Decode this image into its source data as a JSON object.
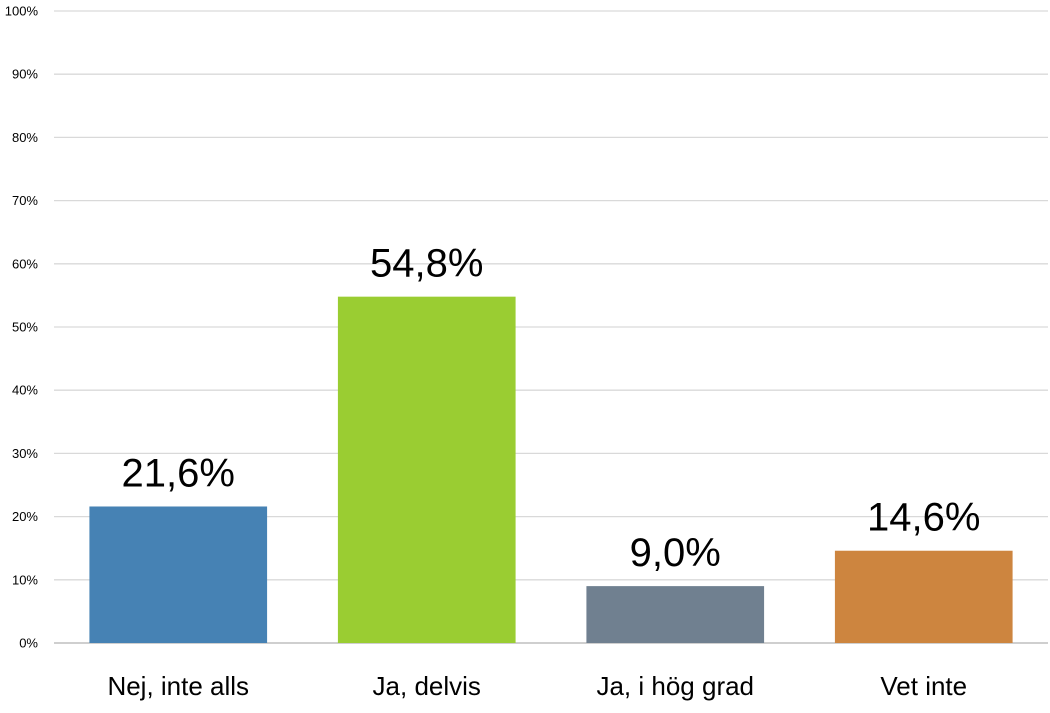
{
  "chart_data": {
    "type": "bar",
    "categories": [
      "Nej, inte alls",
      "Ja, delvis",
      "Ja, i hög grad",
      "Vet inte"
    ],
    "values": [
      21.6,
      54.8,
      9.0,
      14.6
    ],
    "data_labels": [
      "21,6%",
      "54,8%",
      "9,0%",
      "14,6%"
    ],
    "colors": [
      "#4682B4",
      "#9ACD32",
      "#708090",
      "#CD853F"
    ],
    "ylim": [
      0,
      100
    ],
    "yticks": [
      0,
      10,
      20,
      30,
      40,
      50,
      60,
      70,
      80,
      90,
      100
    ],
    "ytick_labels": [
      "0%",
      "10%",
      "20%",
      "30%",
      "40%",
      "50%",
      "60%",
      "70%",
      "80%",
      "90%",
      "100%"
    ],
    "grid": true,
    "legend": "none",
    "title": "",
    "xlabel": "",
    "ylabel": ""
  }
}
